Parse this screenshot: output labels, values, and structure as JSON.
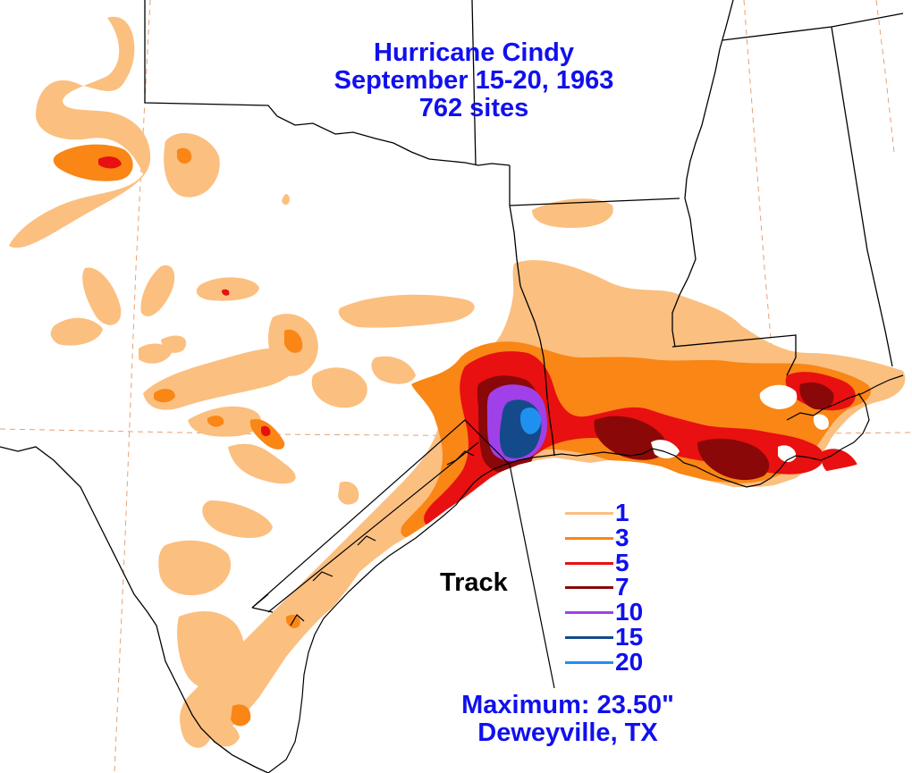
{
  "title": {
    "name": "Hurricane Cindy",
    "dates": "September 15-20, 1963",
    "sites": "762 sites"
  },
  "legend": {
    "items": [
      {
        "label": "1",
        "color": "#fbbf80"
      },
      {
        "label": "3",
        "color": "#f98615"
      },
      {
        "label": "5",
        "color": "#e81010"
      },
      {
        "label": "7",
        "color": "#8b0808"
      },
      {
        "label": "10",
        "color": "#a040e8"
      },
      {
        "label": "15",
        "color": "#154a8a"
      },
      {
        "label": "20",
        "color": "#2090f0"
      }
    ]
  },
  "track_label": "Track",
  "maximum": {
    "value": "Maximum: 23.50\"",
    "location": "Deweyville, TX"
  },
  "colors": {
    "text_blue": "#1010ee",
    "boundary": "#000000",
    "graticule": "#e8a070",
    "background": "#ffffff"
  }
}
